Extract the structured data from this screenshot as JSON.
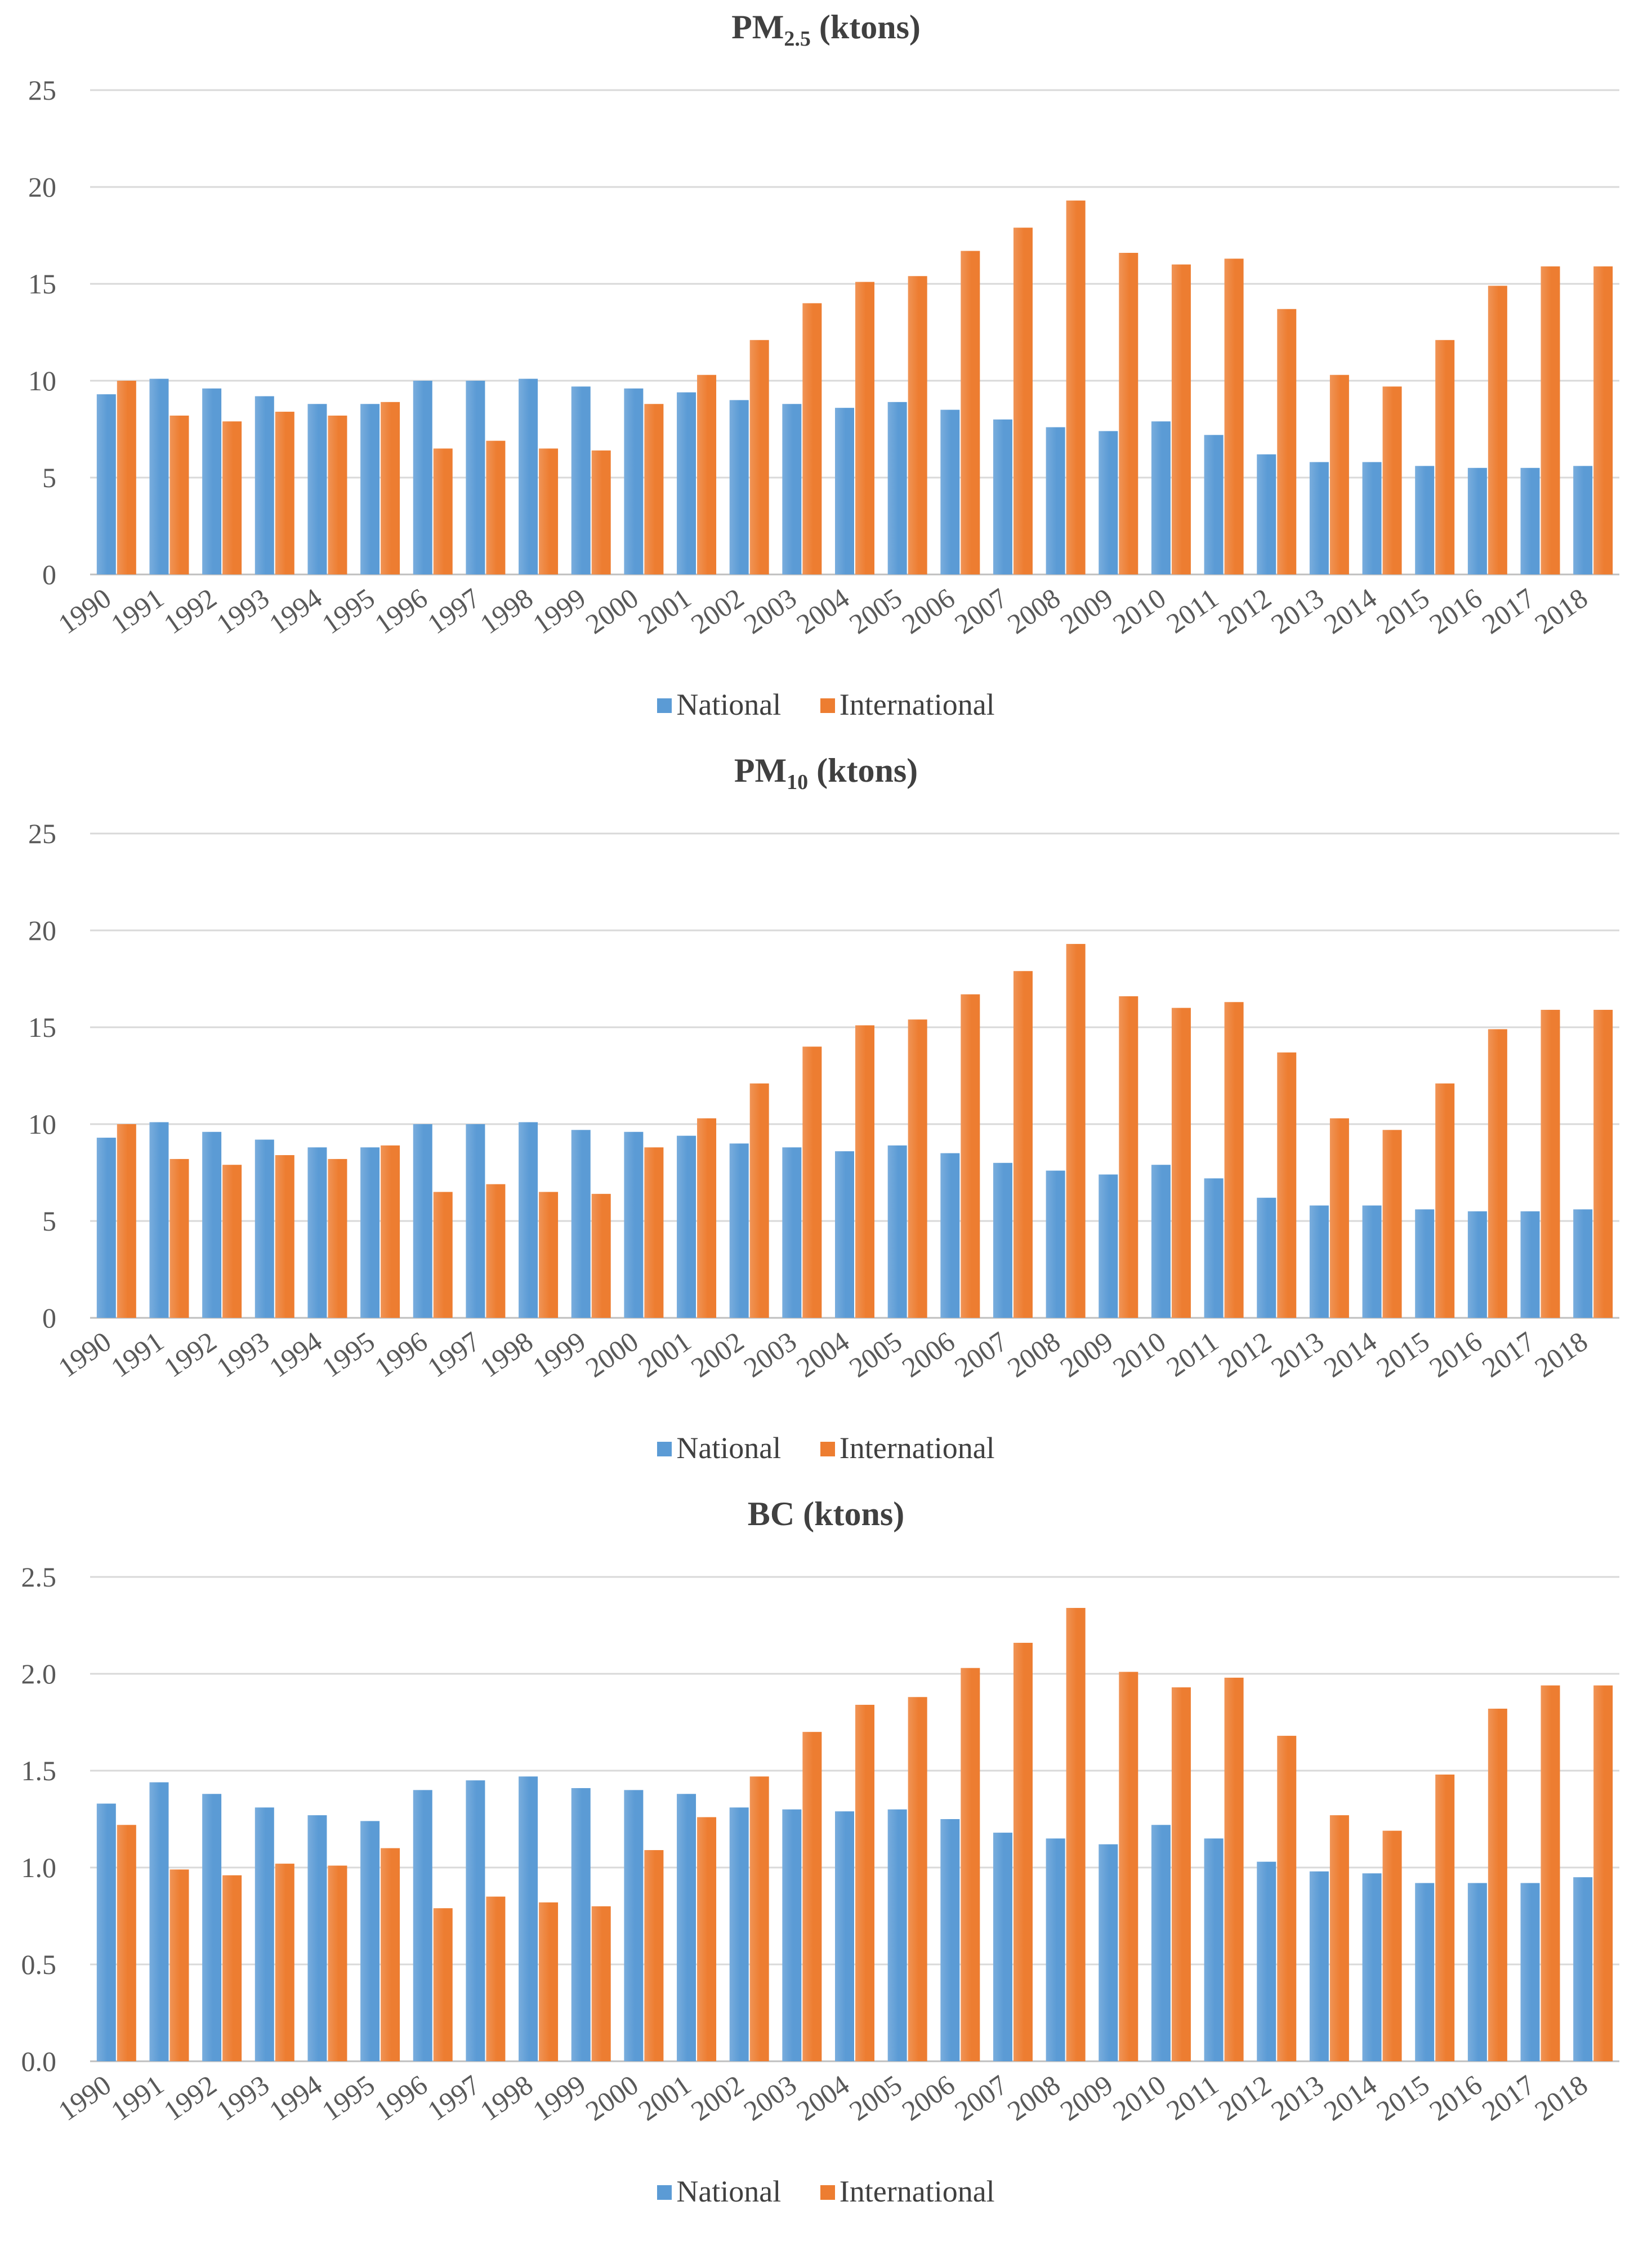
{
  "chart_data": [
    {
      "type": "bar",
      "title_main": "PM",
      "title_sub": "2.5",
      "title_unit": " (ktons)",
      "categories": [
        "1990",
        "1991",
        "1992",
        "1993",
        "1994",
        "1995",
        "1996",
        "1997",
        "1998",
        "1999",
        "2000",
        "2001",
        "2002",
        "2003",
        "2004",
        "2005",
        "2006",
        "2007",
        "2008",
        "2009",
        "2010",
        "2011",
        "2012",
        "2013",
        "2014",
        "2015",
        "2016",
        "2017",
        "2018"
      ],
      "ylim": [
        0,
        25
      ],
      "yticks": [
        "0",
        "5",
        "10",
        "15",
        "20",
        "25"
      ],
      "ytick_values": [
        0,
        5,
        10,
        15,
        20,
        25
      ],
      "series": [
        {
          "name": "National",
          "color": "#5b9bd5",
          "values": [
            9.3,
            10.1,
            9.6,
            9.2,
            8.8,
            8.8,
            10.0,
            10.0,
            10.1,
            9.7,
            9.6,
            9.4,
            9.0,
            8.8,
            8.6,
            8.9,
            8.5,
            8.0,
            7.6,
            7.4,
            7.9,
            7.2,
            6.2,
            5.8,
            5.8,
            5.6,
            5.5,
            5.5,
            5.6
          ]
        },
        {
          "name": "International",
          "color": "#ed7d31",
          "values": [
            10.0,
            8.2,
            7.9,
            8.4,
            8.2,
            8.9,
            6.5,
            6.9,
            6.5,
            6.4,
            8.8,
            10.3,
            12.1,
            14.0,
            15.1,
            15.4,
            16.7,
            17.9,
            19.3,
            16.6,
            16.0,
            16.3,
            13.7,
            10.3,
            9.7,
            12.1,
            14.9,
            15.9,
            15.9
          ]
        }
      ]
    },
    {
      "type": "bar",
      "title_main": "PM",
      "title_sub": "10",
      "title_unit": " (ktons)",
      "categories": [
        "1990",
        "1991",
        "1992",
        "1993",
        "1994",
        "1995",
        "1996",
        "1997",
        "1998",
        "1999",
        "2000",
        "2001",
        "2002",
        "2003",
        "2004",
        "2005",
        "2006",
        "2007",
        "2008",
        "2009",
        "2010",
        "2011",
        "2012",
        "2013",
        "2014",
        "2015",
        "2016",
        "2017",
        "2018"
      ],
      "ylim": [
        0,
        25
      ],
      "yticks": [
        "0",
        "5",
        "10",
        "15",
        "20",
        "25"
      ],
      "ytick_values": [
        0,
        5,
        10,
        15,
        20,
        25
      ],
      "series": [
        {
          "name": "National",
          "color": "#5b9bd5",
          "values": [
            9.3,
            10.1,
            9.6,
            9.2,
            8.8,
            8.8,
            10.0,
            10.0,
            10.1,
            9.7,
            9.6,
            9.4,
            9.0,
            8.8,
            8.6,
            8.9,
            8.5,
            8.0,
            7.6,
            7.4,
            7.9,
            7.2,
            6.2,
            5.8,
            5.8,
            5.6,
            5.5,
            5.5,
            5.6
          ]
        },
        {
          "name": "International",
          "color": "#ed7d31",
          "values": [
            10.0,
            8.2,
            7.9,
            8.4,
            8.2,
            8.9,
            6.5,
            6.9,
            6.5,
            6.4,
            8.8,
            10.3,
            12.1,
            14.0,
            15.1,
            15.4,
            16.7,
            17.9,
            19.3,
            16.6,
            16.0,
            16.3,
            13.7,
            10.3,
            9.7,
            12.1,
            14.9,
            15.9,
            15.9
          ]
        }
      ]
    },
    {
      "type": "bar",
      "title_main": "BC",
      "title_sub": "",
      "title_unit": " (ktons)",
      "categories": [
        "1990",
        "1991",
        "1992",
        "1993",
        "1994",
        "1995",
        "1996",
        "1997",
        "1998",
        "1999",
        "2000",
        "2001",
        "2002",
        "2003",
        "2004",
        "2005",
        "2006",
        "2007",
        "2008",
        "2009",
        "2010",
        "2011",
        "2012",
        "2013",
        "2014",
        "2015",
        "2016",
        "2017",
        "2018"
      ],
      "ylim": [
        0,
        2.5
      ],
      "yticks": [
        "0.0",
        "0.5",
        "1.0",
        "1.5",
        "2.0",
        "2.5"
      ],
      "ytick_values": [
        0,
        0.5,
        1.0,
        1.5,
        2.0,
        2.5
      ],
      "series": [
        {
          "name": "National",
          "color": "#5b9bd5",
          "values": [
            1.33,
            1.44,
            1.38,
            1.31,
            1.27,
            1.24,
            1.4,
            1.45,
            1.47,
            1.41,
            1.4,
            1.38,
            1.31,
            1.3,
            1.29,
            1.3,
            1.25,
            1.18,
            1.15,
            1.12,
            1.22,
            1.15,
            1.03,
            0.98,
            0.97,
            0.92,
            0.92,
            0.92,
            0.95
          ]
        },
        {
          "name": "International",
          "color": "#ed7d31",
          "values": [
            1.22,
            0.99,
            0.96,
            1.02,
            1.01,
            1.1,
            0.79,
            0.85,
            0.82,
            0.8,
            1.09,
            1.26,
            1.47,
            1.7,
            1.84,
            1.88,
            2.03,
            2.16,
            2.34,
            2.01,
            1.93,
            1.98,
            1.68,
            1.27,
            1.19,
            1.48,
            1.82,
            1.94,
            1.94
          ]
        }
      ]
    }
  ]
}
